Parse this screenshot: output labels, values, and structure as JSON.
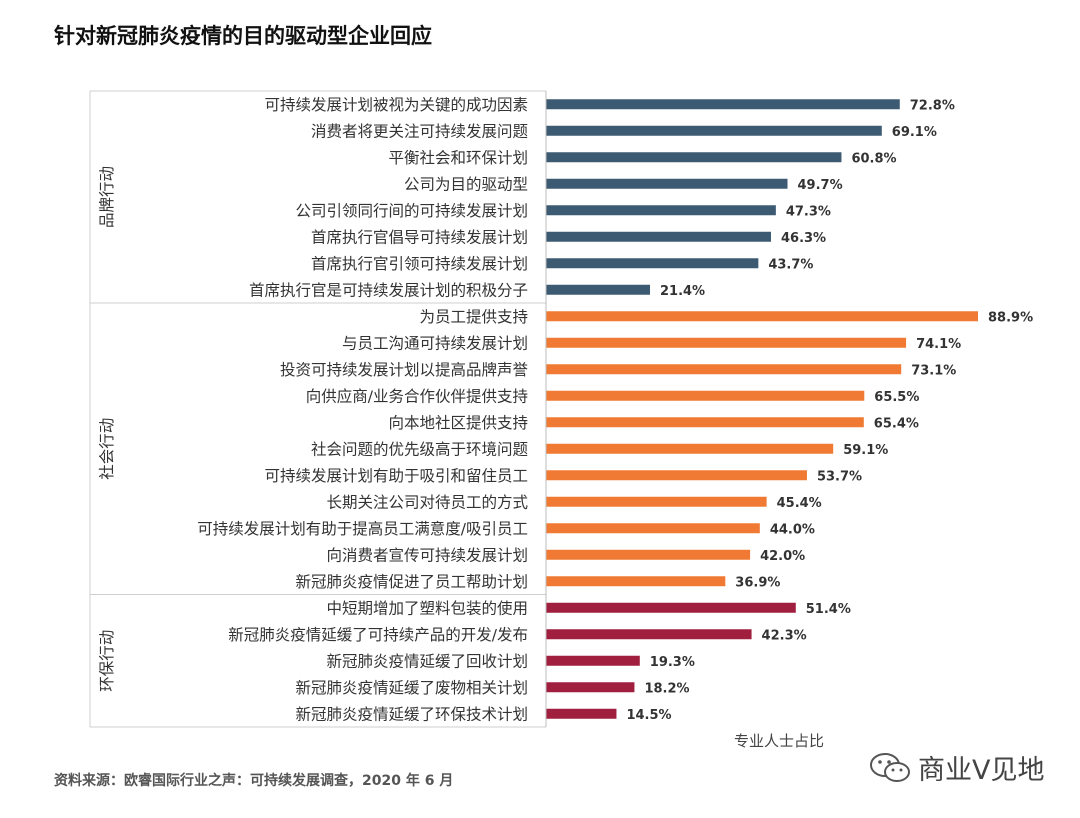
{
  "title": "针对新冠肺炎疫情的目的驱动型企业回应",
  "source": "资料来源：欧睿国际行业之声：可持续发展调查，2020 年 6 月",
  "watermark": "商业V见地",
  "chart_data": {
    "type": "bar",
    "orientation": "horizontal",
    "title": "针对新冠肺炎疫情的目的驱动型企业回应",
    "xlabel": "专业人士占比",
    "xlim": [
      0,
      100
    ],
    "value_suffix": "%",
    "grid": false,
    "groups": [
      {
        "name": "品牌行动",
        "color": "#3d5a73",
        "categories": [
          "可持续发展计划被视为关键的成功因素",
          "消费者将更关注可持续发展问题",
          "平衡社会和环保计划",
          "公司为目的驱动型",
          "公司引领同行间的可持续发展计划",
          "首席执行官倡导可持续发展计划",
          "首席执行官引领可持续发展计划",
          "首席执行官是可持续发展计划的积极分子"
        ],
        "values": [
          72.8,
          69.1,
          60.8,
          49.7,
          47.3,
          46.3,
          43.7,
          21.4
        ],
        "labels": [
          "72.8%",
          "69.1%",
          "60.8%",
          "49.7%",
          "47.3%",
          "46.3%",
          "43.7%",
          "21.4%"
        ]
      },
      {
        "name": "社会行动",
        "color": "#f07a34",
        "categories": [
          "为员工提供支持",
          "与员工沟通可持续发展计划",
          "投资可持续发展计划以提高品牌声誉",
          "向供应商/业务合作伙伴提供支持",
          "向本地社区提供支持",
          "社会问题的优先级高于环境问题",
          "可持续发展计划有助于吸引和留住员工",
          "长期关注公司对待员工的方式",
          "可持续发展计划有助于提高员工满意度/吸引员工",
          "向消费者宣传可持续发展计划",
          "新冠肺炎疫情促进了员工帮助计划"
        ],
        "values": [
          88.9,
          74.1,
          73.1,
          65.5,
          65.4,
          59.1,
          53.7,
          45.4,
          44.0,
          42.0,
          36.9
        ],
        "labels": [
          "88.9%",
          "74.1%",
          "73.1%",
          "65.5%",
          "65.4%",
          "59.1%",
          "53.7%",
          "45.4%",
          "44.0%",
          "42.0%",
          "36.9%"
        ]
      },
      {
        "name": "环保行动",
        "color": "#a01e3e",
        "categories": [
          "中短期增加了塑料包装的使用",
          "新冠肺炎疫情延缓了可持续产品的开发/发布",
          "新冠肺炎疫情延缓了回收计划",
          "新冠肺炎疫情延缓了废物相关计划",
          "新冠肺炎疫情延缓了环保技术计划"
        ],
        "values": [
          51.4,
          42.3,
          19.3,
          18.2,
          14.5
        ],
        "labels": [
          "51.4%",
          "42.3%",
          "19.3%",
          "18.2%",
          "14.5%"
        ]
      }
    ]
  }
}
